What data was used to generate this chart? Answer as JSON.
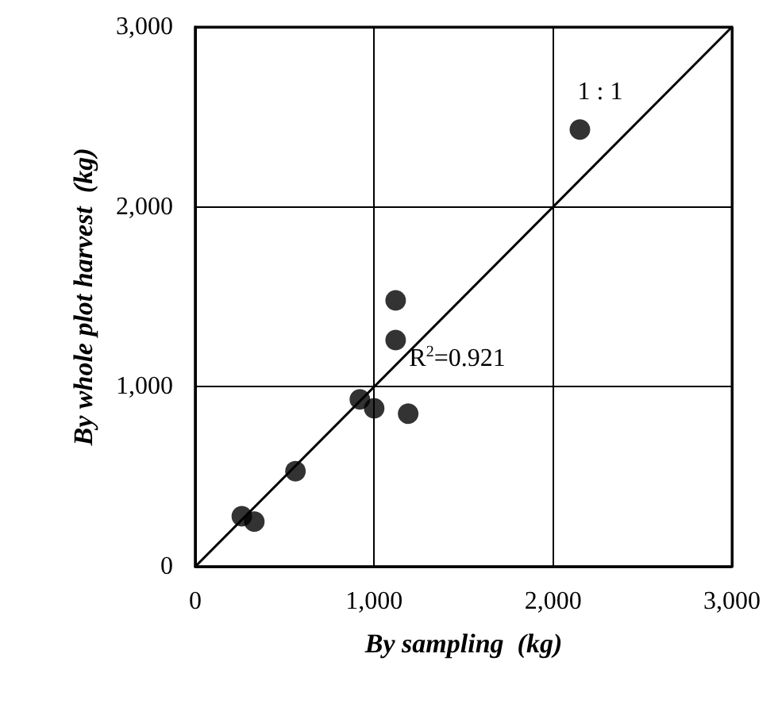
{
  "chart_data": {
    "type": "scatter",
    "xlabel": "By sampling  (kg)",
    "ylabel": "By whole plot harvest  (kg)",
    "x": [
      260,
      330,
      560,
      920,
      1000,
      1190,
      1120,
      1120,
      2150
    ],
    "series": [
      {
        "color": "#000000",
        "marker": "circle",
        "values": [
          280,
          250,
          530,
          930,
          880,
          850,
          1260,
          1480,
          2430
        ]
      },
      {
        "type": "line",
        "color": "#000000",
        "marker": "none",
        "line_style": "solid",
        "x": [
          0,
          3000
        ],
        "values": [
          0,
          3000
        ]
      }
    ],
    "xlim": [
      0,
      3000
    ],
    "ylim": [
      0,
      3000
    ],
    "xticks": [
      0,
      {
        "value": 1000,
        "label": "1,000"
      },
      {
        "value": 2000,
        "label": "2,000"
      },
      {
        "value": 3000,
        "label": "3,000"
      }
    ],
    "yticks": [
      0,
      {
        "value": 1000,
        "label": "1,000"
      },
      {
        "value": 2000,
        "label": "2,000"
      },
      {
        "value": 3000,
        "label": "3,000"
      }
    ],
    "annotations": [
      "1 : 1",
      "R$^{2}$=0.921"
    ],
    "grid": true
  }
}
